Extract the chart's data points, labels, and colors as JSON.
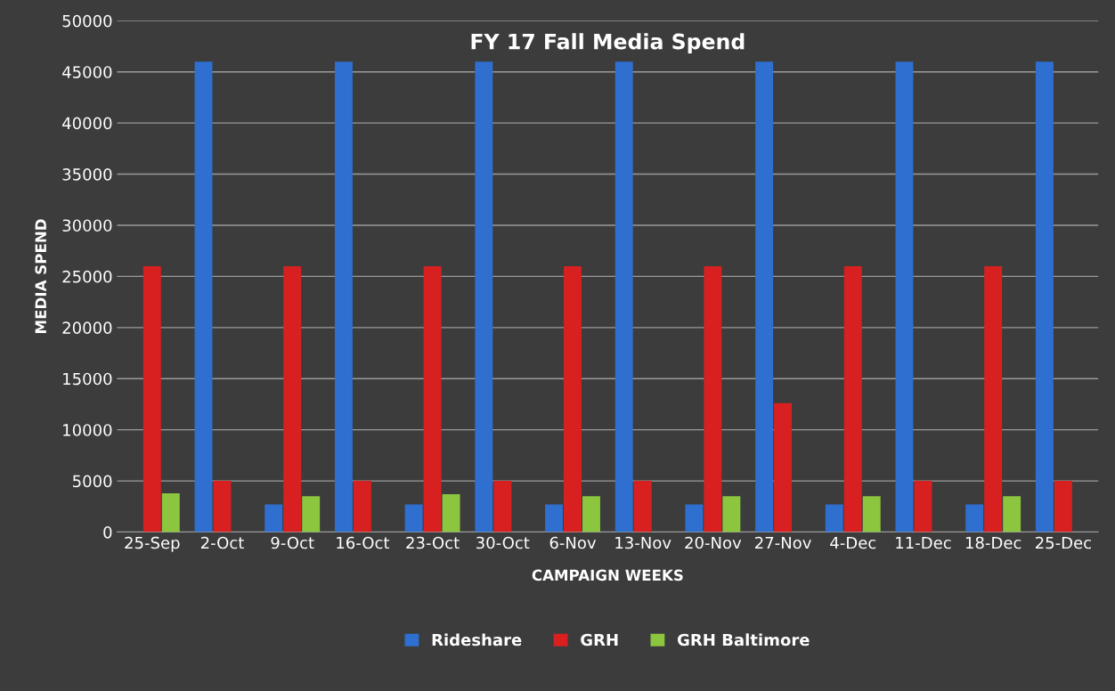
{
  "chart_data": {
    "type": "bar",
    "title": "FY 17 Fall Media Spend",
    "xlabel": "CAMPAIGN WEEKS",
    "ylabel": "MEDIA SPEND",
    "categories": [
      "25-Sep",
      "2-Oct",
      "9-Oct",
      "16-Oct",
      "23-Oct",
      "30-Oct",
      "6-Nov",
      "13-Nov",
      "20-Nov",
      "27-Nov",
      "4-Dec",
      "11-Dec",
      "18-Dec",
      "25-Dec"
    ],
    "series": [
      {
        "name": "Rideshare",
        "color": "#2f6fd0",
        "values": [
          null,
          46000,
          2700,
          46000,
          2700,
          46000,
          2700,
          46000,
          2700,
          46000,
          2700,
          46000,
          2700,
          46000
        ]
      },
      {
        "name": "GRH",
        "color": "#d92020",
        "values": [
          26000,
          5000,
          26000,
          5000,
          26000,
          5000,
          26000,
          5000,
          26000,
          12600,
          26000,
          5000,
          26000,
          5000
        ]
      },
      {
        "name": "GRH Baltimore",
        "color": "#8cc63f",
        "values": [
          3800,
          null,
          3500,
          null,
          3700,
          null,
          3500,
          null,
          3500,
          null,
          3500,
          null,
          3500,
          null
        ]
      }
    ],
    "ylim": [
      0,
      50000
    ],
    "yticks": [
      0,
      5000,
      10000,
      15000,
      20000,
      25000,
      30000,
      35000,
      40000,
      45000,
      50000
    ],
    "grid": "y",
    "legend": "bottom"
  }
}
